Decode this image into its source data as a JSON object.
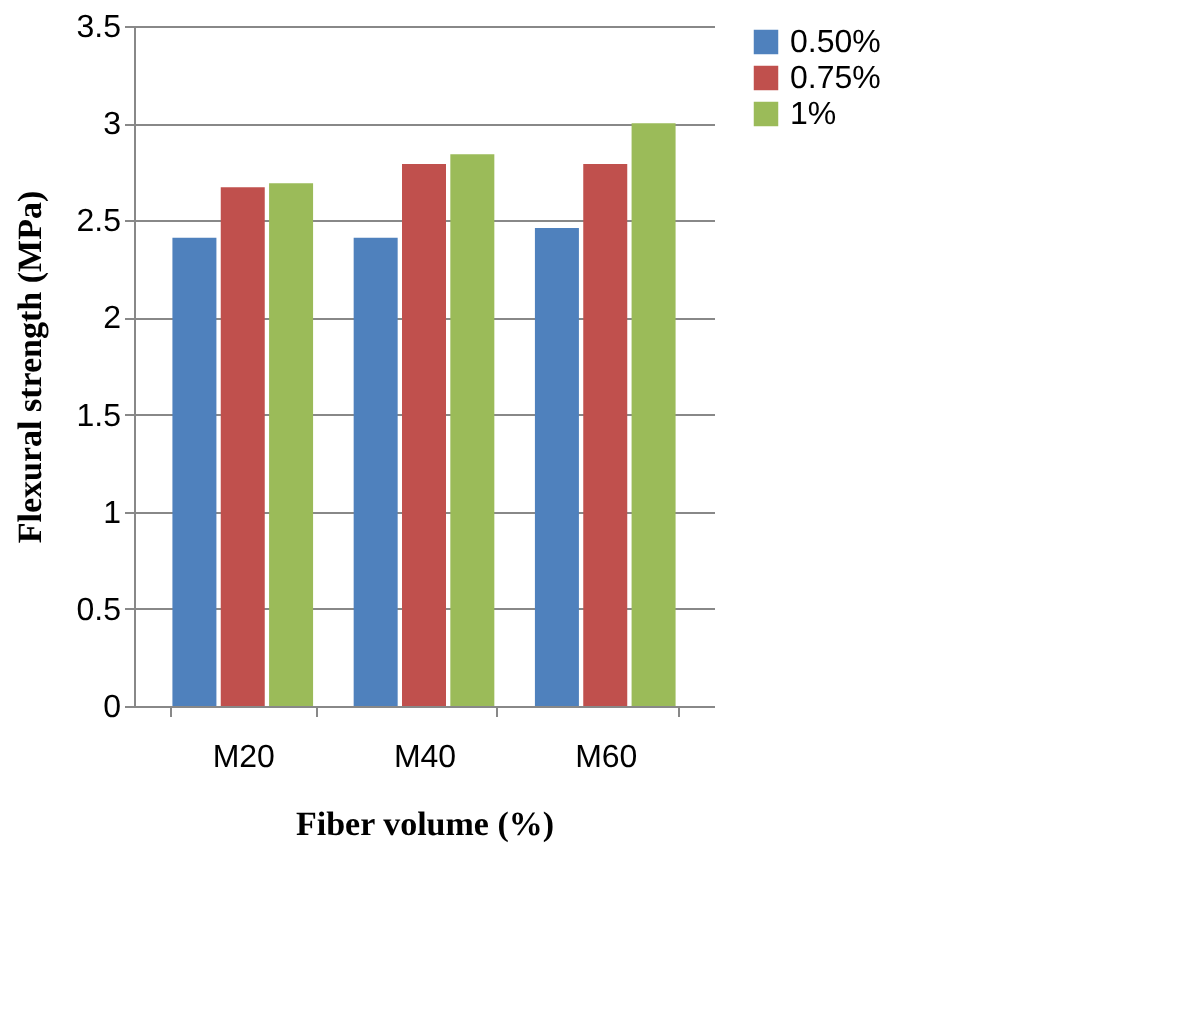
{
  "chart_data": {
    "type": "bar",
    "xlabel": "Fiber volume (%)",
    "ylabel": "Flexural strength (MPa)",
    "categories": [
      "M20",
      "M40",
      "M60"
    ],
    "series": [
      {
        "name": "0.50%",
        "color": "#4f81bd",
        "values": [
          2.41,
          2.41,
          2.46
        ]
      },
      {
        "name": "0.75%",
        "color": "#c0504d",
        "values": [
          2.67,
          2.79,
          2.79
        ]
      },
      {
        "name": "1%",
        "color": "#9bbb59",
        "values": [
          2.69,
          2.84,
          3.0
        ]
      }
    ],
    "ylim": [
      0,
      3.5
    ],
    "yticks": [
      0,
      0.5,
      1,
      1.5,
      2,
      2.5,
      3,
      3.5
    ],
    "grid": "y",
    "legend": "right"
  }
}
